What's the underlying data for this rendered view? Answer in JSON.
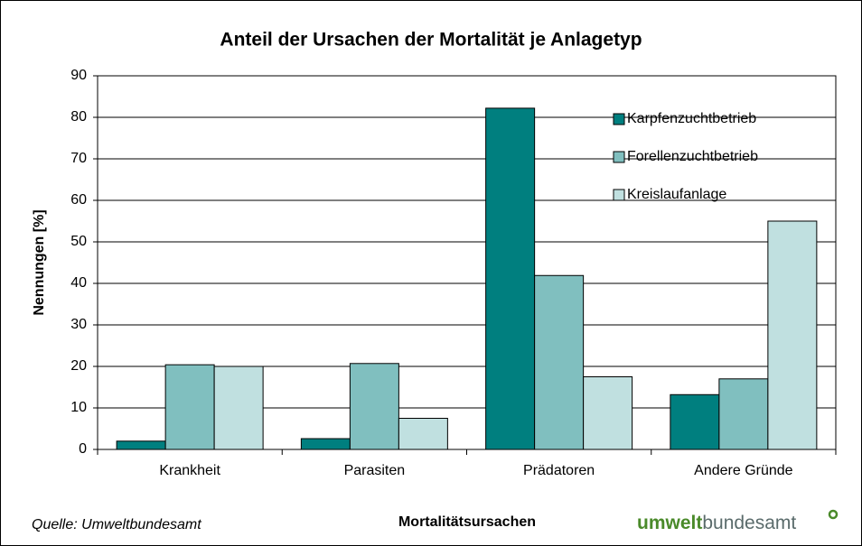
{
  "chart_data": {
    "type": "bar",
    "title": "Anteil der Ursachen der Mortalität je Anlagetyp",
    "x_label": "Mortalitätsursachen",
    "y_label": "Nennungen [%]",
    "categories": [
      "Krankheit",
      "Parasiten",
      "Prädatoren",
      "Andere Gründe"
    ],
    "series": [
      {
        "name": "Karpfenzuchtbetrieb",
        "color": "#007f7f",
        "values": [
          2,
          2.6,
          82.2,
          13.2
        ]
      },
      {
        "name": "Forellenzuchtbetrieb",
        "color": "#80bfbf",
        "values": [
          20.4,
          20.7,
          41.9,
          17
        ]
      },
      {
        "name": "Kreislaufanlage",
        "color": "#c0e0e0",
        "values": [
          20,
          7.5,
          17.5,
          55
        ]
      }
    ],
    "ylim": [
      0,
      90
    ],
    "yticks": [
      0,
      10,
      20,
      30,
      40,
      50,
      60,
      70,
      80,
      90
    ],
    "grid": true,
    "legend": "top-right"
  },
  "source": "Quelle: Umweltbundesamt",
  "logo": {
    "bold": "umwelt",
    "rest": "bundesamt"
  }
}
